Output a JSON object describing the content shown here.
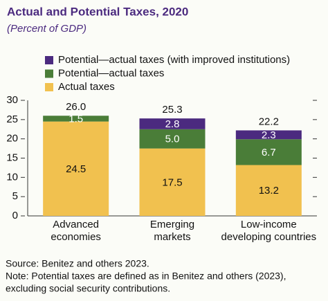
{
  "chart_data": {
    "type": "stacked_bar",
    "title": "Actual and Potential Taxes, 2020",
    "subtitle": "(Percent of GDP)",
    "categories": [
      [
        "Advanced",
        "economies"
      ],
      [
        "Emerging",
        "markets"
      ],
      [
        "Low-income",
        "developing countries"
      ]
    ],
    "series": [
      {
        "name": "Actual taxes",
        "color": "#f1c14f",
        "values": [
          24.5,
          17.5,
          13.2
        ]
      },
      {
        "name": "Potential—actual taxes",
        "color": "#4a7d38",
        "values": [
          1.5,
          5,
          6.7
        ],
        "value_labels": [
          "1.5",
          "5.0",
          "6.7"
        ]
      },
      {
        "name": "Potential—actual taxes (with improved institutions)",
        "color": "#4b2a7f",
        "values": [
          null,
          2.8,
          2.3
        ]
      }
    ],
    "totals": {
      "values": [
        26,
        25.3,
        22.2
      ],
      "value_labels": [
        "26.0",
        "25.3",
        "22.2"
      ]
    },
    "ylim": [
      0,
      30
    ],
    "yticks": [
      0,
      5,
      10,
      15,
      20,
      25,
      30
    ],
    "notes": [
      "Source: Benitez and others 2023.",
      "Note: Potential taxes are defined as in Benitez and others (2023),",
      "excluding social security contributions."
    ]
  }
}
